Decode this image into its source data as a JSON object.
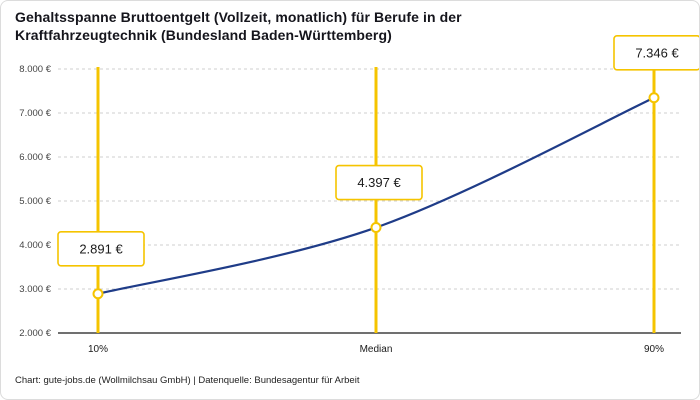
{
  "title": "Gehaltsspanne Bruttoentgelt (Vollzeit, monatlich) für Berufe in der Kraftfahrzeugtechnik (Bundesland Baden-Württemberg)",
  "footer": "Chart: gute-jobs.de (Wollmilchsau GmbH) | Datenquelle: Bundesagentur für Arbeit",
  "chart_data": {
    "type": "line",
    "categories": [
      "10%",
      "Median",
      "90%"
    ],
    "values": [
      2891,
      4397,
      7346
    ],
    "point_labels": [
      "2.891 €",
      "4.397 €",
      "7.346 €"
    ],
    "ylim": [
      2000,
      8000
    ],
    "yticks": [
      2000,
      3000,
      4000,
      5000,
      6000,
      7000,
      8000
    ],
    "ytick_labels": [
      "2.000 €",
      "3.000 €",
      "4.000 €",
      "5.000 €",
      "6.000 €",
      "7.000 €",
      "8.000 €"
    ],
    "grid": "dashed-horizontal",
    "legend": "none",
    "colors": {
      "line": "#1F3C88",
      "highlight": "#F5C400",
      "grid": "#cfcfcf",
      "axis": "#1a1a1a",
      "tick_text": "#444444",
      "label_text": "#1a1a1a",
      "callout_bg": "#ffffff"
    }
  }
}
